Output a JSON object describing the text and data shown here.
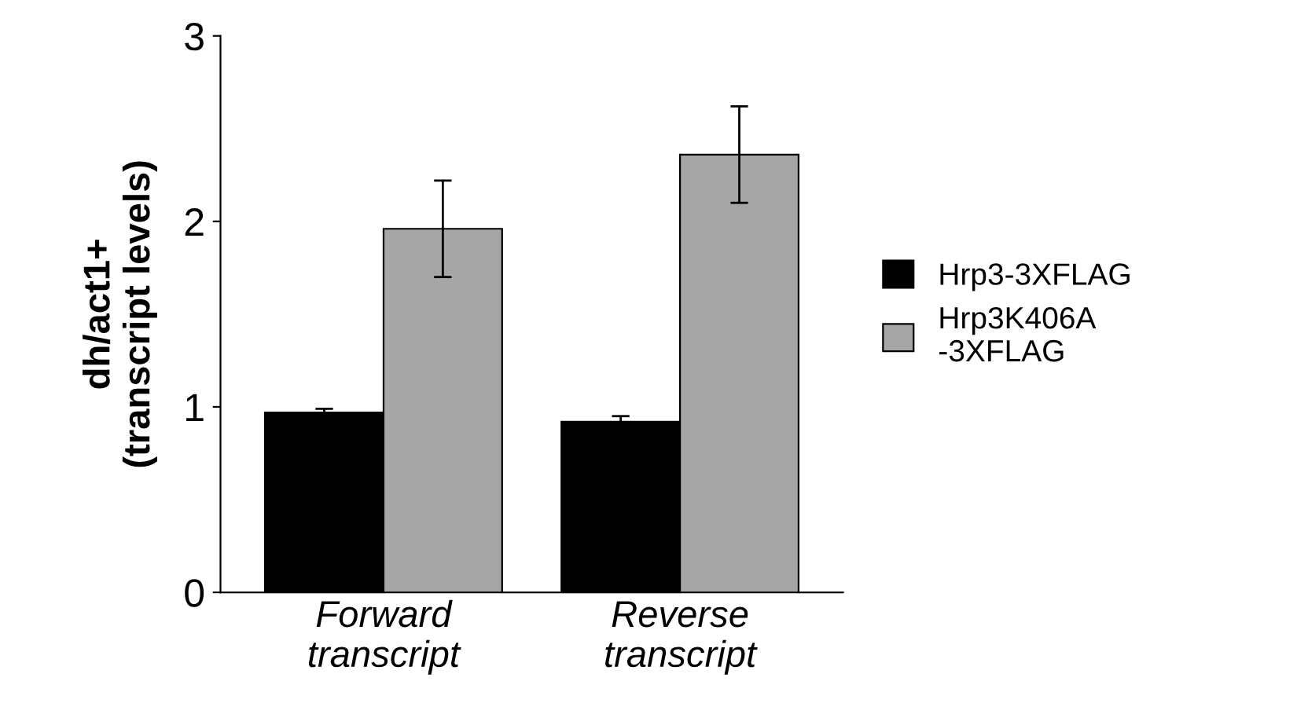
{
  "chart_data": {
    "type": "bar",
    "ylabel": "dh/act1+\n(transcript levels)",
    "categories": [
      "Forward\ntranscript",
      "Reverse\ntranscript"
    ],
    "series": [
      {
        "name": "Hrp3-3XFLAG",
        "color": "#000000",
        "values": [
          0.97,
          0.92
        ],
        "errors": [
          0.02,
          0.03
        ]
      },
      {
        "name": "Hrp3K406A\n-3XFLAG",
        "color": "#a6a6a6",
        "values": [
          1.96,
          2.36
        ],
        "errors": [
          0.26,
          0.26
        ]
      }
    ],
    "ylim": [
      0,
      3
    ],
    "yticks": [
      0,
      1,
      2,
      3
    ],
    "grid": false,
    "legend": "right"
  }
}
